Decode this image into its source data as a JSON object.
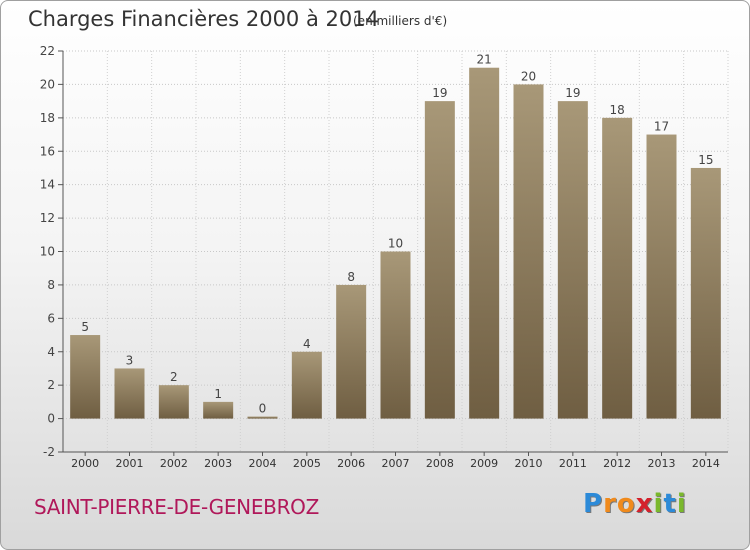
{
  "chart_data": {
    "type": "bar",
    "title": "Charges Financières 2000 à 2014",
    "subtitle": "(en milliers d'€)",
    "categories": [
      "2000",
      "2001",
      "2002",
      "2003",
      "2004",
      "2005",
      "2006",
      "2007",
      "2008",
      "2009",
      "2010",
      "2011",
      "2012",
      "2013",
      "2014"
    ],
    "values": [
      5,
      3,
      2,
      1,
      0,
      4,
      8,
      10,
      19,
      21,
      20,
      19,
      18,
      17,
      15
    ],
    "ylim": [
      -2,
      22
    ],
    "yticks": [
      -2,
      0,
      2,
      4,
      6,
      8,
      10,
      12,
      14,
      16,
      18,
      20,
      22
    ],
    "grid": true,
    "xlabel": "",
    "ylabel": ""
  },
  "location": "SAINT-PIERRE-DE-GENEBROZ",
  "logo": {
    "text": "Proxiti",
    "letters": [
      {
        "ch": "P",
        "color": "#2c8ad8"
      },
      {
        "ch": "r",
        "color": "#f08a1c"
      },
      {
        "ch": "o",
        "color": "#f08a1c"
      },
      {
        "ch": "x",
        "color": "#d4212c"
      },
      {
        "ch": "i",
        "color": "#7ab82c"
      },
      {
        "ch": "t",
        "color": "#2c8ad8"
      },
      {
        "ch": "i",
        "color": "#7ab82c"
      }
    ]
  },
  "colors": {
    "bar_top": "#a89878",
    "bar_bottom": "#6f5e42",
    "title": "#333333",
    "location": "#b0185a"
  }
}
